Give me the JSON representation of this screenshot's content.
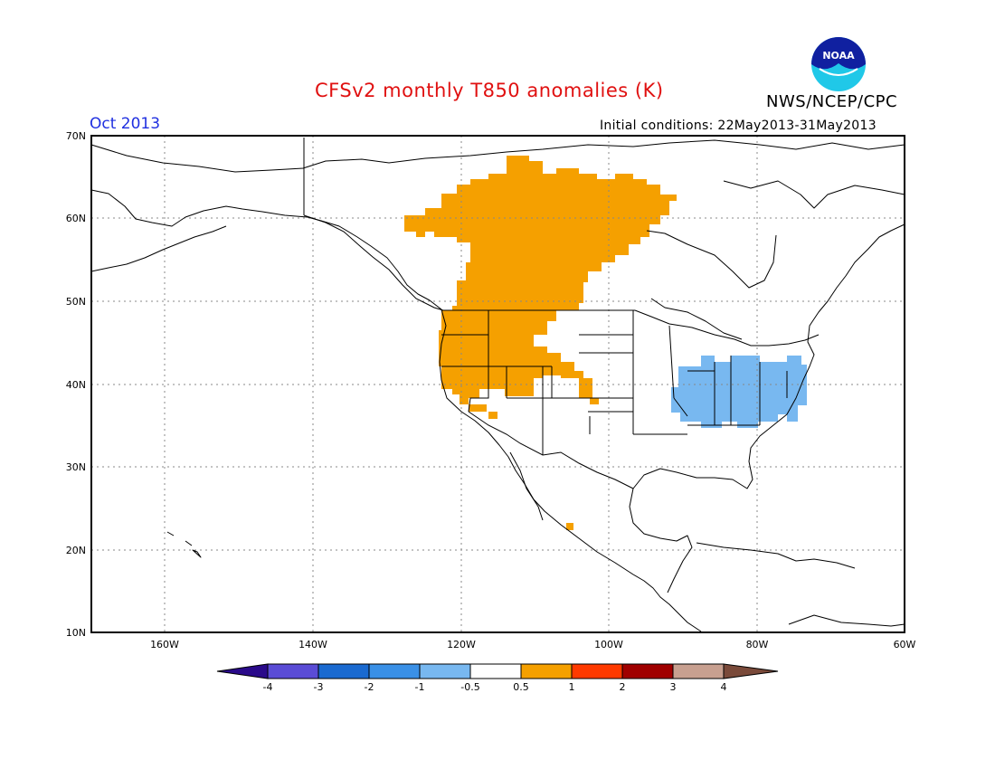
{
  "header": {
    "title": "CFSv2 monthly T850 anomalies (K)",
    "agency": "NWS/NCEP/CPC",
    "logo_text": "NOAA",
    "period": "Oct 2013",
    "initial_conditions": "Initial conditions: 22May2013-31May2013"
  },
  "map": {
    "projection": "lat-lon",
    "lon_range": [
      -170,
      -60
    ],
    "lat_range": [
      10,
      70
    ],
    "lat_labels": [
      "10N",
      "20N",
      "30N",
      "40N",
      "50N",
      "60N",
      "70N"
    ],
    "lon_labels": [
      "160W",
      "140W",
      "120W",
      "100W",
      "80W",
      "60W"
    ],
    "gridlines": "dotted",
    "anomaly_regions": [
      {
        "sign": "positive",
        "category": "0.5 to 1",
        "color": "#f5a000",
        "area": "Western Canada and northwestern United States"
      },
      {
        "sign": "positive",
        "category": "0.5 to 1",
        "color": "#f5a000",
        "area": "Central Mexico (small patch)"
      },
      {
        "sign": "negative",
        "category": "-1 to -0.5",
        "color": "#78b8f0",
        "area": "Ohio Valley and Mid-Atlantic United States"
      }
    ]
  },
  "colorbar": {
    "tick_labels": [
      "-4",
      "-3",
      "-2",
      "-1",
      "-0.5",
      "0.5",
      "1",
      "2",
      "3",
      "4"
    ],
    "colors": [
      "#2a0a8a",
      "#5a4cd6",
      "#1a6ad0",
      "#3a90e6",
      "#78b8f0",
      "#ffffff",
      "#f5a000",
      "#ff3a00",
      "#a00000",
      "#c8a090",
      "#7a4a3a"
    ]
  }
}
